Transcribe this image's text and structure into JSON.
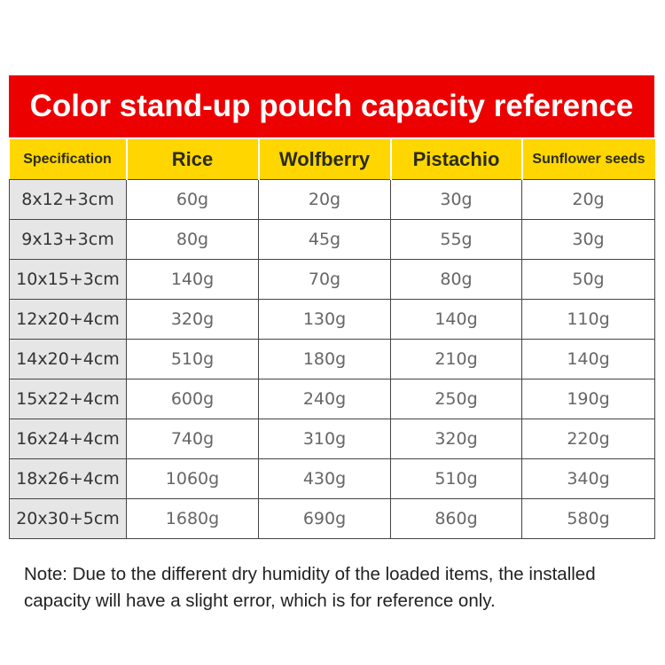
{
  "title": "Color stand-up pouch capacity reference",
  "columns": [
    "Specification",
    "Rice",
    "Wolfberry",
    "Pistachio",
    "Sunflower seeds"
  ],
  "rows": [
    [
      "8x12+3cm",
      "60g",
      "20g",
      "30g",
      "20g"
    ],
    [
      "9x13+3cm",
      "80g",
      "45g",
      "55g",
      "30g"
    ],
    [
      "10x15+3cm",
      "140g",
      "70g",
      "80g",
      "50g"
    ],
    [
      "12x20+4cm",
      "320g",
      "130g",
      "140g",
      "110g"
    ],
    [
      "14x20+4cm",
      "510g",
      "180g",
      "210g",
      "140g"
    ],
    [
      "15x22+4cm",
      "600g",
      "240g",
      "250g",
      "190g"
    ],
    [
      "16x24+4cm",
      "740g",
      "310g",
      "320g",
      "220g"
    ],
    [
      "18x26+4cm",
      "1060g",
      "430g",
      "510g",
      "340g"
    ],
    [
      "20x30+5cm",
      "1680g",
      "690g",
      "860g",
      "580g"
    ]
  ],
  "note": "Note: Due to the different dry humidity of the loaded items, the installed capacity will have a slight error, which is for reference only.",
  "colors": {
    "banner": "#ec0000",
    "header": "#ffd600",
    "spec_column": "#e6e6e6"
  }
}
